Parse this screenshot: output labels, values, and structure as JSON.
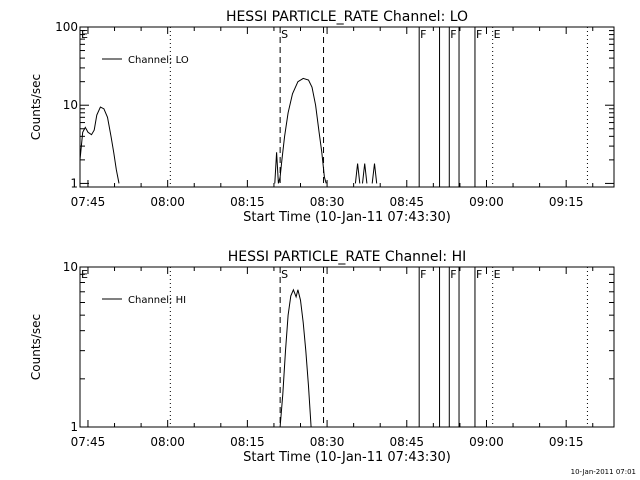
{
  "footer": {
    "timestamp": "10-Jan-2011 07:01"
  },
  "chart_data": [
    {
      "type": "line",
      "title": "HESSI PARTICLE_RATE Channel: LO",
      "xlabel": "Start Time (10-Jan-11 07:43:30)",
      "ylabel": "Counts/sec",
      "yscale": "log",
      "ylim": [
        0.9,
        100
      ],
      "y_ticks": [
        1,
        10,
        100
      ],
      "y_tick_labels": [
        "1",
        "10",
        "100"
      ],
      "x_ticks": [
        "07:45",
        "08:00",
        "08:15",
        "08:30",
        "08:45",
        "09:00",
        "09:15"
      ],
      "xlim": [
        "07:43:30",
        "09:24:00"
      ],
      "legend": {
        "position": "top-left",
        "entries": [
          "Channel: LO"
        ]
      },
      "grid": false,
      "series": [
        {
          "name": "Channel: LO",
          "segments": [
            [
              [
                "07:43:30",
                2
              ],
              [
                "07:44:00",
                4.5
              ],
              [
                "07:44:30",
                5.2
              ],
              [
                "07:45:00",
                4.5
              ],
              [
                "07:45:40",
                4.2
              ],
              [
                "07:46:10",
                4.8
              ],
              [
                "07:46:40",
                7.5
              ],
              [
                "07:47:20",
                9.5
              ],
              [
                "07:48:00",
                9
              ],
              [
                "07:48:40",
                7
              ],
              [
                "07:49:20",
                4
              ],
              [
                "07:49:50",
                2.5
              ],
              [
                "07:50:20",
                1.5
              ],
              [
                "07:50:50",
                1
              ]
            ],
            [
              [
                "08:20:10",
                1
              ],
              [
                "08:20:30",
                2.5
              ],
              [
                "08:20:50",
                1
              ],
              [
                "08:21:10",
                1.2
              ],
              [
                "08:21:30",
                2
              ],
              [
                "08:22:00",
                4
              ],
              [
                "08:22:40",
                8
              ],
              [
                "08:23:30",
                14
              ],
              [
                "08:24:30",
                20
              ],
              [
                "08:25:30",
                22
              ],
              [
                "08:26:30",
                21
              ],
              [
                "08:27:10",
                17
              ],
              [
                "08:27:50",
                10
              ],
              [
                "08:28:30",
                4.5
              ],
              [
                "08:29:00",
                2.5
              ],
              [
                "08:29:30",
                1.2
              ],
              [
                "08:29:50",
                1
              ]
            ],
            [
              [
                "08:35:20",
                1
              ],
              [
                "08:35:45",
                1.8
              ],
              [
                "08:36:10",
                1
              ]
            ],
            [
              [
                "08:36:40",
                1
              ],
              [
                "08:37:05",
                1.8
              ],
              [
                "08:37:30",
                1
              ]
            ],
            [
              [
                "08:38:30",
                1
              ],
              [
                "08:38:55",
                1.8
              ],
              [
                "08:39:20",
                1
              ]
            ]
          ]
        }
      ],
      "markers": [
        {
          "label": "E",
          "time": "07:43:30",
          "style": "none"
        },
        {
          "label": "",
          "time": "08:00:30",
          "style": "dotted"
        },
        {
          "label": "S",
          "time": "08:21:10",
          "style": "dashed"
        },
        {
          "label": "",
          "time": "08:29:20",
          "style": "dashed"
        },
        {
          "label": "F",
          "time": "08:47:20",
          "style": "solid"
        },
        {
          "label": "",
          "time": "08:51:10",
          "style": "solid"
        },
        {
          "label": "F",
          "time": "08:53:00",
          "style": "solid"
        },
        {
          "label": "",
          "time": "08:54:50",
          "style": "solid"
        },
        {
          "label": "F",
          "time": "08:57:50",
          "style": "solid"
        },
        {
          "label": "E",
          "time": "09:01:10",
          "style": "dotted"
        },
        {
          "label": "",
          "time": "09:19:00",
          "style": "dotted"
        }
      ]
    },
    {
      "type": "line",
      "title": "HESSI PARTICLE_RATE Channel: HI",
      "xlabel": "Start Time (10-Jan-11 07:43:30)",
      "ylabel": "Counts/sec",
      "yscale": "log",
      "ylim": [
        1,
        10
      ],
      "y_ticks": [
        1,
        10
      ],
      "y_tick_labels": [
        "1",
        "10"
      ],
      "x_ticks": [
        "07:45",
        "08:00",
        "08:15",
        "08:30",
        "08:45",
        "09:00",
        "09:15"
      ],
      "xlim": [
        "07:43:30",
        "09:24:00"
      ],
      "legend": {
        "position": "top-left",
        "entries": [
          "Channel: HI"
        ]
      },
      "grid": false,
      "series": [
        {
          "name": "Channel: HI",
          "segments": [
            [
              [
                "08:21:10",
                1
              ],
              [
                "08:21:40",
                1.6
              ],
              [
                "08:22:10",
                3
              ],
              [
                "08:22:40",
                5
              ],
              [
                "08:23:10",
                6.6
              ],
              [
                "08:23:40",
                7.2
              ],
              [
                "08:24:10",
                6.5
              ],
              [
                "08:24:30",
                7.2
              ],
              [
                "08:25:00",
                6.2
              ],
              [
                "08:25:30",
                4.5
              ],
              [
                "08:26:00",
                3
              ],
              [
                "08:26:30",
                1.8
              ],
              [
                "08:27:00",
                1
              ]
            ]
          ]
        }
      ],
      "markers": [
        {
          "label": "E",
          "time": "07:43:30",
          "style": "none"
        },
        {
          "label": "",
          "time": "08:00:30",
          "style": "dotted"
        },
        {
          "label": "S",
          "time": "08:21:10",
          "style": "dashed"
        },
        {
          "label": "",
          "time": "08:29:20",
          "style": "dashed"
        },
        {
          "label": "F",
          "time": "08:47:20",
          "style": "solid"
        },
        {
          "label": "",
          "time": "08:51:10",
          "style": "solid"
        },
        {
          "label": "F",
          "time": "08:53:00",
          "style": "solid"
        },
        {
          "label": "",
          "time": "08:54:50",
          "style": "solid"
        },
        {
          "label": "F",
          "time": "08:57:50",
          "style": "solid"
        },
        {
          "label": "E",
          "time": "09:01:10",
          "style": "dotted"
        },
        {
          "label": "",
          "time": "09:19:00",
          "style": "dotted"
        }
      ]
    }
  ]
}
